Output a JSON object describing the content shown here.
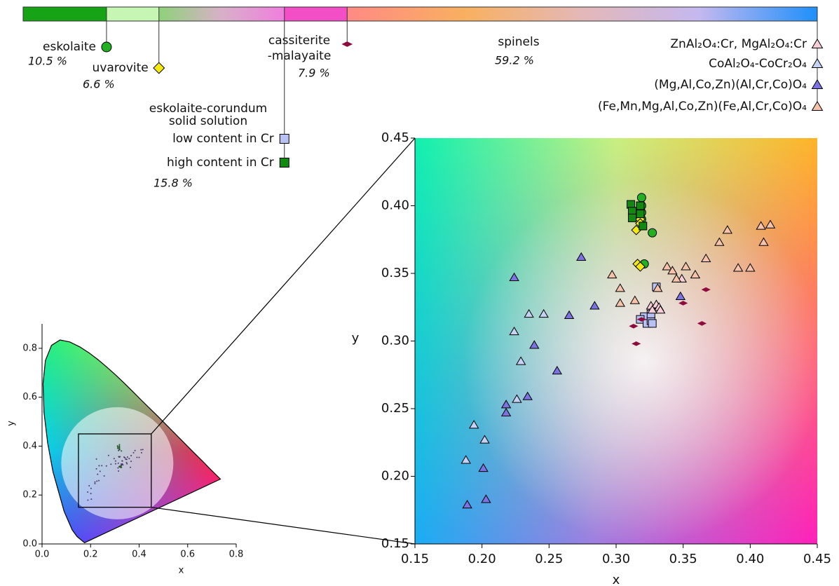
{
  "composition_bar": {
    "segments": [
      {
        "value": 10.5,
        "value_label": "10.5 %",
        "colors": [
          "#16a416"
        ]
      },
      {
        "value": 6.6,
        "value_label": "6.6 %",
        "colors": [
          "#c6f5b4"
        ]
      },
      {
        "name_lines": [
          "eskolaite-corundum",
          "solid solution"
        ],
        "value": 15.8,
        "value_label": "15.8 %",
        "colors": [
          "#8ed27a",
          "#d8b0c8",
          "#f07ede"
        ]
      },
      {
        "name_lines": [
          "cassiterite",
          "-malayaite"
        ],
        "value": 7.9,
        "value_label": "7.9 %",
        "colors": [
          "#f24ec6"
        ]
      },
      {
        "name": "spinels",
        "value": 59.2,
        "value_label": "59.2 %",
        "colors": [
          "#ff8a84",
          "#f8b060",
          "#e4b8b8",
          "#c4b8f0",
          "#1e90fa"
        ]
      }
    ]
  },
  "chart_data": [
    {
      "type": "scatter",
      "xlabel": "x",
      "ylabel": "y",
      "xlim": [
        0.15,
        0.45
      ],
      "ylim": [
        0.15,
        0.45
      ],
      "xticks": [
        0.15,
        {
          "value": 0.2,
          "label": "0.20"
        },
        0.25,
        {
          "value": 0.3,
          "label": "0.30"
        },
        0.35,
        {
          "value": 0.4,
          "label": "0.40"
        },
        0.45
      ],
      "yticks": [
        0.15,
        {
          "value": 0.2,
          "label": "0.20"
        },
        0.25,
        {
          "value": 0.3,
          "label": "0.30"
        },
        0.35,
        {
          "value": 0.4,
          "label": "0.40"
        },
        0.45
      ],
      "series": [
        {
          "name": "eskolaite",
          "marker": "circle",
          "color": "#22b022",
          "x": [
            0.319,
            0.319,
            0.319,
            0.319,
            0.327,
            0.321
          ],
          "values": [
            0.406,
            0.4,
            0.395,
            0.39,
            0.38,
            0.357
          ]
        },
        {
          "name": "uvarovite",
          "marker": "diamond",
          "color": "#f5ea10",
          "x": [
            0.318,
            0.318,
            0.315,
            0.316,
            0.318
          ],
          "values": [
            0.39,
            0.387,
            0.382,
            0.357,
            0.355
          ]
        },
        {
          "name": "low content in Cr",
          "marker": "square",
          "color": "#b8c0f4",
          "x": [
            0.33,
            0.321,
            0.318,
            0.323,
            0.326,
            0.326,
            0.327
          ],
          "values": [
            0.34,
            0.318,
            0.316,
            0.313,
            0.315,
            0.32,
            0.313
          ]
        },
        {
          "name": "high content in Cr",
          "marker": "square",
          "color": "#128a12",
          "x": [
            0.311,
            0.312,
            0.312,
            0.318,
            0.318,
            0.32
          ],
          "values": [
            0.401,
            0.396,
            0.391,
            0.4,
            0.394,
            0.385
          ]
        },
        {
          "marker": "flat-diamond",
          "color": "#8c0c3e",
          "x": [
            0.367,
            0.35,
            0.364,
            0.319,
            0.313,
            0.315
          ],
          "values": [
            0.338,
            0.328,
            0.313,
            0.316,
            0.311,
            0.298
          ]
        },
        {
          "name": "ZnAl₂O₄:Cr, MgAl₂O₄:Cr",
          "marker": "triangle",
          "color": "#f6cfd8",
          "x": [
            0.326,
            0.33,
            0.332,
            0.333,
            0.327,
            0.349
          ],
          "values": [
            0.326,
            0.327,
            0.325,
            0.323,
            0.323,
            0.346
          ]
        },
        {
          "name": "CoAl₂O₄-CoCr₂O₄",
          "marker": "triangle",
          "color": "#c6d2f4",
          "x": [
            0.224,
            0.235,
            0.246,
            0.229,
            0.226,
            0.194,
            0.202,
            0.188
          ],
          "values": [
            0.307,
            0.32,
            0.32,
            0.285,
            0.257,
            0.238,
            0.227,
            0.212
          ]
        },
        {
          "name": "(Mg,Al,Co,Zn)(Al,Cr,Co)O₄",
          "marker": "triangle",
          "color": "#7d72e2",
          "x": [
            0.224,
            0.274,
            0.265,
            0.284,
            0.239,
            0.256,
            0.234,
            0.218,
            0.218,
            0.201,
            0.203,
            0.189,
            0.348
          ],
          "values": [
            0.347,
            0.362,
            0.319,
            0.326,
            0.297,
            0.278,
            0.259,
            0.253,
            0.247,
            0.206,
            0.183,
            0.179,
            0.333
          ]
        },
        {
          "name": "(Fe,Mn,Mg,Al,Co,Zn)(Fe,Al,Cr,Co)O₄",
          "marker": "triangle",
          "color": "#f6c2aa",
          "x": [
            0.297,
            0.303,
            0.303,
            0.314,
            0.331,
            0.338,
            0.342,
            0.345,
            0.352,
            0.359,
            0.367,
            0.377,
            0.383,
            0.391,
            0.4,
            0.408,
            0.415,
            0.41
          ],
          "values": [
            0.349,
            0.339,
            0.328,
            0.33,
            0.339,
            0.355,
            0.352,
            0.346,
            0.355,
            0.349,
            0.361,
            0.373,
            0.382,
            0.354,
            0.354,
            0.385,
            0.386,
            0.373
          ]
        }
      ]
    },
    {
      "type": "chromaticity",
      "xlabel": "x",
      "ylabel": "y",
      "xlim": [
        0,
        0.8
      ],
      "ylim": [
        0,
        0.9
      ],
      "xticks": [
        {
          "value": 0,
          "label": "0.0"
        },
        0.2,
        0.4,
        0.6,
        0.8
      ],
      "yticks": [
        {
          "value": 0,
          "label": "0.0"
        },
        0.2,
        0.4,
        0.6,
        0.8
      ]
    }
  ]
}
